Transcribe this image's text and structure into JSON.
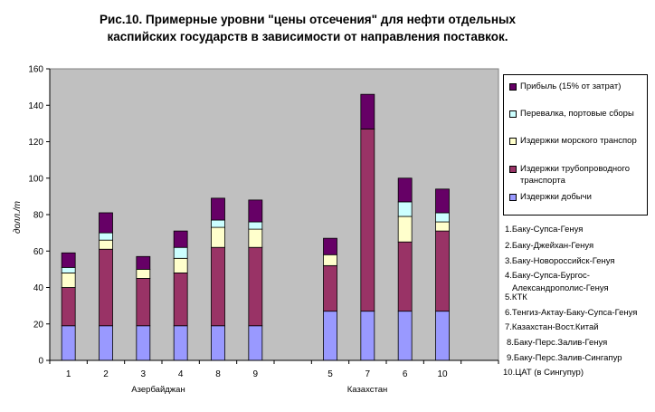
{
  "title_line1": "Рис.10. Примерные уровни \"цены отсечения\" для нефти отдельных",
  "title_line2": "каспийских государств в зависимости от направления поставкок.",
  "chart_data": {
    "type": "bar",
    "stacked": true,
    "ylabel": "долл./т",
    "ylim": [
      0,
      160
    ],
    "yticks": [
      0,
      20,
      40,
      60,
      80,
      100,
      120,
      140,
      160
    ],
    "grid": false,
    "legend_position": "right",
    "categories": [
      "1",
      "2",
      "3",
      "4",
      "8",
      "9",
      "5",
      "7",
      "6",
      "10"
    ],
    "groups": [
      {
        "label": "Азербайджан",
        "categories": [
          "1",
          "2",
          "3",
          "4",
          "8",
          "9"
        ]
      },
      {
        "label": "Казахстан",
        "categories": [
          "5",
          "7",
          "6",
          "10"
        ]
      }
    ],
    "series": [
      {
        "name": "Издержки добычи",
        "color": "#9999ff",
        "values": [
          19,
          19,
          19,
          19,
          19,
          19,
          27,
          27,
          27,
          27
        ]
      },
      {
        "name": "Издержки  трубопроводного транспорта",
        "color": "#993366",
        "values": [
          21,
          42,
          26,
          29,
          43,
          43,
          25,
          100,
          38,
          44
        ]
      },
      {
        "name": "Издержки морского транспорта",
        "color": "#ffffcc",
        "values": [
          8,
          5,
          5,
          8,
          11,
          10,
          6,
          0,
          14,
          5
        ]
      },
      {
        "name": "Перевалка, портовые сборы",
        "color": "#ccffff",
        "values": [
          3,
          4,
          0,
          6,
          4,
          4,
          0,
          0,
          8,
          5
        ]
      },
      {
        "name": "Прибыль (15% от затрат)",
        "color": "#660066",
        "values": [
          8,
          11,
          7,
          9,
          12,
          12,
          9,
          19,
          13,
          13
        ]
      }
    ]
  },
  "legend_labels": {
    "profit": "Прибыль (15% от затрат)",
    "transshipment": "Перевалка, портовые сборы",
    "sea": "Издержки морского транспор",
    "pipeline_1": "Издержки  трубопроводного",
    "pipeline_2": "транспорта",
    "production": "Издержки добычи"
  },
  "routes": [
    "1.Баку-Супса-Генуя",
    "2.Баку-Джейхан-Генуя",
    "3.Баку-Новороссийск-Генуя",
    "4.Баку-Супса-Бургос-",
    "Александрополис-Генуя",
    "5.КТК",
    "6.Тенгиз-Актау-Баку-Супса-Генуя",
    "7.Казахстан-Вост.Китай",
    "8.Баку-Перс.Залив-Генуя",
    "9.Баку-Перс.Залив-Сингапур",
    "10.ЦАТ (в Сингупур)"
  ]
}
